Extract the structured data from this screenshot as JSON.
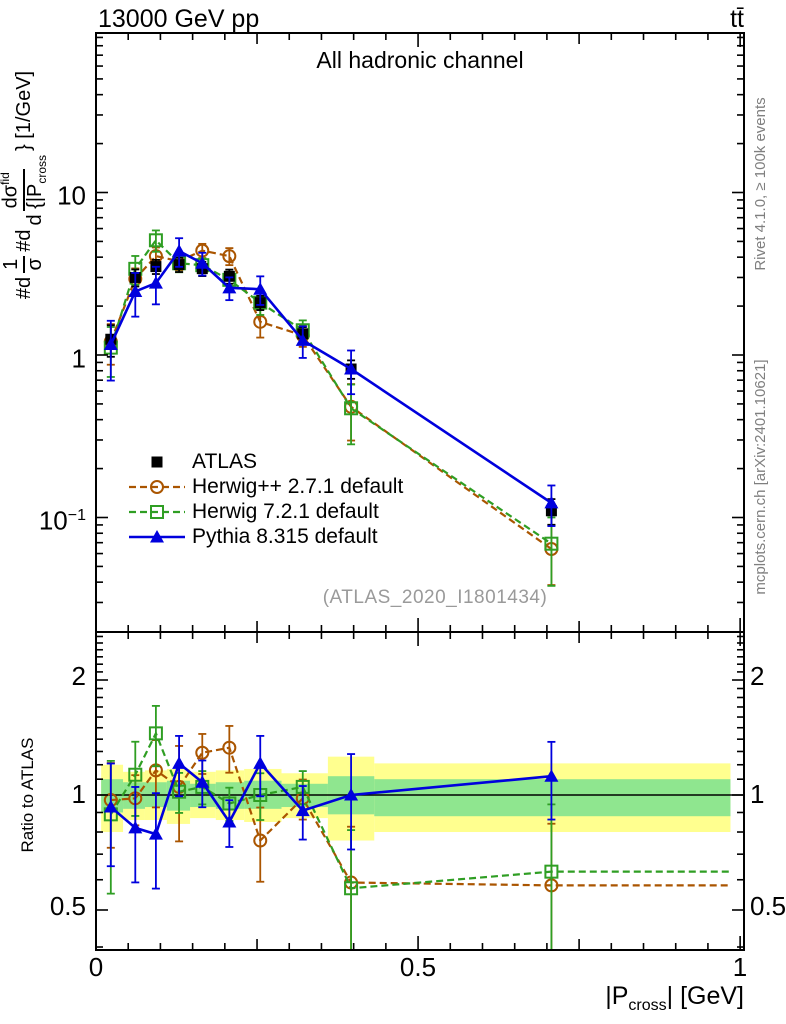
{
  "header": {
    "left": "13000 GeV pp",
    "right": "tt̄"
  },
  "panel_title": "All hadronic channel",
  "watermark": "(ATLAS_2020_I1801434)",
  "credits": {
    "top": "Rivet 4.1.0, ≥ 100k events",
    "bottom": "mcplots.cern.ch [arXiv:2401.10621]"
  },
  "ylabel": {
    "t1": "#d",
    "f1num": "1",
    "f1den": "σ",
    "t2": "#d",
    "f2num": "dσ",
    "f2sup": "fid",
    "f2den": "d {|P",
    "f2sub": "cross",
    "suffix": "} [1/GeV]"
  },
  "xlabel": {
    "pre": "|P",
    "sub": "cross",
    "post": "| [GeV]"
  },
  "ratio_ylabel": "Ratio to ATLAS",
  "legend": [
    {
      "label": "ATLAS",
      "series": "atlas"
    },
    {
      "label": "Herwig++ 2.7.1 default",
      "series": "herwigpp"
    },
    {
      "label": "Herwig 7.2.1 default",
      "series": "herwig7"
    },
    {
      "label": "Pythia 8.315 default",
      "series": "pythia"
    }
  ],
  "axes": {
    "main_y": [
      {
        "t": "10",
        "sup": ""
      },
      {
        "t": "1",
        "sup": ""
      },
      {
        "t": "10",
        "sup": "−1"
      }
    ],
    "ratio_y": [
      "2",
      "1",
      "0.5"
    ],
    "x": [
      "0",
      "0.5",
      "1"
    ]
  },
  "colors": {
    "atlas": "#000000",
    "herwigpp": "#aa5500",
    "herwig7": "#2f9e23",
    "pythia": "#0000dd",
    "band_yellow": "#ffff8f",
    "band_green": "#8fe68f",
    "frame": "#000000",
    "watermark": "#9a9a9a",
    "credits": "#7f7f7f"
  },
  "chart_data": {
    "type": "line",
    "title": "All hadronic channel",
    "xlabel": "|P_cross| [GeV]",
    "ylabel": "1/σ dσ^fid / d{|P_cross} [1/GeV]",
    "ratio_ylabel": "Ratio to ATLAS",
    "x_axis_scale": "linear",
    "y_axis_scale": "log",
    "xlim": [
      0,
      1.006
    ],
    "ylim_main": [
      0.02,
      95
    ],
    "ylim_ratio": [
      0.39,
      2.67
    ],
    "x": [
      0.023,
      0.061,
      0.093,
      0.129,
      0.165,
      0.207,
      0.255,
      0.321,
      0.396,
      0.707
    ],
    "series": [
      {
        "id": "atlas",
        "name": "ATLAS",
        "marker": "filled-square",
        "line": "none",
        "color": "#000000",
        "values": [
          1.25,
          3.0,
          3.5,
          3.6,
          3.4,
          3.05,
          2.1,
          1.35,
          0.82,
          0.11
        ],
        "err": [
          0.22,
          0.12,
          0.1,
          0.1,
          0.1,
          0.1,
          0.1,
          0.1,
          0.13,
          0.18
        ]
      },
      {
        "id": "herwigpp",
        "name": "Herwig++ 2.7.1 default",
        "marker": "open-circle",
        "line": "dashed",
        "color": "#aa5500",
        "values": [
          1.21,
          2.94,
          4.06,
          3.78,
          4.39,
          4.06,
          1.6,
          1.32,
          0.48,
          0.064
        ],
        "err": [
          0.28,
          0.16,
          0.13,
          0.12,
          0.1,
          0.12,
          0.2,
          0.15,
          0.38,
          0.4
        ],
        "ratio": [
          0.97,
          0.98,
          1.16,
          1.05,
          1.29,
          1.33,
          0.76,
          0.98,
          0.59,
          0.58
        ],
        "ratio_err": [
          0.25,
          0.15,
          0.2,
          0.28,
          0.12,
          0.14,
          0.22,
          0.12,
          0.4,
          0.45
        ]
      },
      {
        "id": "herwig7",
        "name": "Herwig 7.2.1 default",
        "marker": "open-square",
        "line": "dashed",
        "color": "#2f9e23",
        "values": [
          1.11,
          3.39,
          5.08,
          3.67,
          3.57,
          2.9,
          2.1,
          1.42,
          0.47,
          0.069
        ],
        "err": [
          0.34,
          0.2,
          0.15,
          0.12,
          0.1,
          0.12,
          0.16,
          0.15,
          0.4,
          0.45
        ],
        "ratio": [
          0.89,
          1.13,
          1.45,
          1.02,
          1.05,
          0.95,
          1.0,
          1.05,
          0.57,
          0.63
        ],
        "ratio_err": [
          0.38,
          0.22,
          0.18,
          0.12,
          0.1,
          0.1,
          0.14,
          0.1,
          0.42,
          0.5
        ]
      },
      {
        "id": "pythia",
        "name": "Pythia 8.315 default",
        "marker": "filled-triangle",
        "line": "solid",
        "color": "#0000dd",
        "values": [
          1.16,
          2.46,
          2.77,
          4.36,
          3.67,
          2.59,
          2.54,
          1.23,
          0.82,
          0.123
        ],
        "err": [
          0.4,
          0.3,
          0.26,
          0.2,
          0.16,
          0.16,
          0.2,
          0.22,
          0.3,
          0.28
        ],
        "ratio": [
          0.93,
          0.82,
          0.79,
          1.21,
          1.08,
          0.85,
          1.21,
          0.91,
          1.0,
          1.12
        ],
        "ratio_err": [
          0.3,
          0.28,
          0.28,
          0.18,
          0.14,
          0.14,
          0.18,
          0.16,
          0.28,
          0.23
        ]
      }
    ],
    "ratio_ref_line": 1,
    "ratio_bands": {
      "edges": [
        0.008,
        0.042,
        0.076,
        0.11,
        0.146,
        0.186,
        0.23,
        0.288,
        0.36,
        0.432,
        0.985
      ],
      "green_lo": [
        0.9,
        0.92,
        0.93,
        0.91,
        0.93,
        0.92,
        0.92,
        0.93,
        0.89,
        0.88
      ],
      "green_hi": [
        1.1,
        1.08,
        1.08,
        1.09,
        1.07,
        1.08,
        1.09,
        1.07,
        1.12,
        1.1
      ],
      "yellow_lo": [
        0.8,
        0.86,
        0.86,
        0.84,
        0.87,
        0.86,
        0.85,
        0.87,
        0.76,
        0.8
      ],
      "yellow_hi": [
        1.2,
        1.15,
        1.16,
        1.17,
        1.15,
        1.16,
        1.17,
        1.14,
        1.26,
        1.21
      ]
    }
  }
}
